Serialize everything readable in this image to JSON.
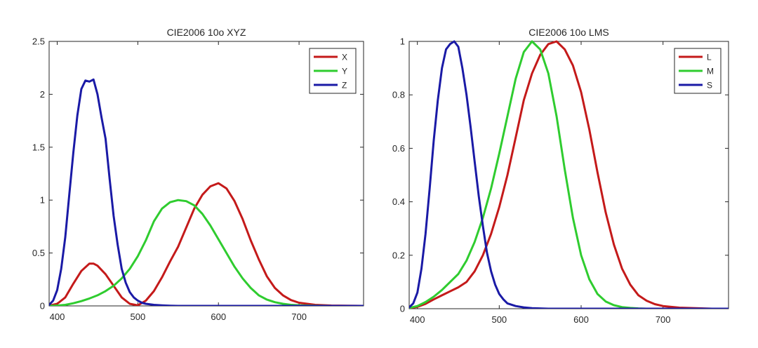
{
  "chart_data": [
    {
      "type": "line",
      "title": "CIE2006 10o XYZ",
      "xlabel": "",
      "ylabel": "",
      "xlim": [
        390,
        780
      ],
      "ylim": [
        0,
        2.5
      ],
      "xticks": [
        "400",
        "500",
        "600",
        "700"
      ],
      "xtick_values": [
        400,
        500,
        600,
        700
      ],
      "yticks": [
        "0",
        "0.5",
        "1",
        "1.5",
        "2",
        "2.5"
      ],
      "ytick_values": [
        0,
        0.5,
        1,
        1.5,
        2,
        2.5
      ],
      "grid": false,
      "legend_position": "top-right",
      "series": [
        {
          "name": "X",
          "color": "#c41a1a",
          "x": [
            390,
            400,
            410,
            420,
            430,
            440,
            445,
            450,
            460,
            470,
            480,
            490,
            500,
            510,
            520,
            530,
            540,
            550,
            560,
            570,
            580,
            590,
            600,
            610,
            620,
            630,
            640,
            650,
            660,
            670,
            680,
            690,
            700,
            720,
            740,
            760,
            780
          ],
          "y": [
            0.002,
            0.02,
            0.08,
            0.21,
            0.33,
            0.4,
            0.4,
            0.38,
            0.3,
            0.19,
            0.08,
            0.02,
            0.005,
            0.05,
            0.14,
            0.27,
            0.42,
            0.56,
            0.74,
            0.92,
            1.05,
            1.13,
            1.16,
            1.11,
            0.99,
            0.82,
            0.62,
            0.44,
            0.28,
            0.17,
            0.1,
            0.055,
            0.03,
            0.01,
            0.003,
            0.001,
            0.0
          ]
        },
        {
          "name": "Y",
          "color": "#2fcc2f",
          "x": [
            390,
            400,
            410,
            420,
            430,
            440,
            450,
            460,
            470,
            480,
            490,
            500,
            510,
            520,
            530,
            540,
            550,
            560,
            570,
            580,
            590,
            600,
            610,
            620,
            630,
            640,
            650,
            660,
            670,
            680,
            690,
            700,
            720,
            740,
            760,
            780
          ],
          "y": [
            0.0,
            0.003,
            0.01,
            0.025,
            0.045,
            0.07,
            0.1,
            0.14,
            0.19,
            0.26,
            0.35,
            0.47,
            0.62,
            0.8,
            0.92,
            0.98,
            1.0,
            0.99,
            0.95,
            0.87,
            0.76,
            0.63,
            0.5,
            0.37,
            0.26,
            0.17,
            0.1,
            0.06,
            0.035,
            0.02,
            0.01,
            0.006,
            0.002,
            0.0,
            0.0,
            0.0
          ]
        },
        {
          "name": "Z",
          "color": "#1a1aa6",
          "x": [
            390,
            395,
            400,
            405,
            410,
            415,
            420,
            425,
            430,
            435,
            440,
            445,
            450,
            455,
            460,
            465,
            470,
            475,
            480,
            485,
            490,
            495,
            500,
            505,
            510,
            520,
            530,
            540,
            550,
            560,
            580,
            600,
            650,
            700,
            780
          ],
          "y": [
            0.01,
            0.05,
            0.15,
            0.35,
            0.65,
            1.05,
            1.45,
            1.8,
            2.05,
            2.13,
            2.12,
            2.14,
            2.0,
            1.78,
            1.58,
            1.2,
            0.85,
            0.58,
            0.35,
            0.22,
            0.13,
            0.08,
            0.05,
            0.03,
            0.02,
            0.01,
            0.005,
            0.002,
            0.0,
            0.0,
            0.0,
            0.0,
            0.0,
            0.0,
            0.0
          ]
        }
      ]
    },
    {
      "type": "line",
      "title": "CIE2006 10o LMS",
      "xlabel": "",
      "ylabel": "",
      "xlim": [
        390,
        780
      ],
      "ylim": [
        0,
        1
      ],
      "xticks": [
        "400",
        "500",
        "600",
        "700"
      ],
      "xtick_values": [
        400,
        500,
        600,
        700
      ],
      "yticks": [
        "0",
        "0.2",
        "0.4",
        "0.6",
        "0.8",
        "1"
      ],
      "ytick_values": [
        0,
        0.2,
        0.4,
        0.6,
        0.8,
        1
      ],
      "grid": false,
      "legend_position": "top-right",
      "series": [
        {
          "name": "L",
          "color": "#c41a1a",
          "x": [
            390,
            400,
            410,
            420,
            430,
            440,
            450,
            460,
            470,
            480,
            490,
            500,
            510,
            520,
            530,
            540,
            550,
            560,
            570,
            580,
            590,
            600,
            610,
            620,
            630,
            640,
            650,
            660,
            670,
            680,
            690,
            700,
            720,
            740,
            760,
            780
          ],
          "y": [
            0.002,
            0.007,
            0.018,
            0.035,
            0.05,
            0.065,
            0.08,
            0.1,
            0.14,
            0.2,
            0.28,
            0.38,
            0.5,
            0.64,
            0.78,
            0.88,
            0.95,
            0.99,
            1.0,
            0.97,
            0.91,
            0.81,
            0.67,
            0.51,
            0.36,
            0.24,
            0.15,
            0.09,
            0.05,
            0.03,
            0.017,
            0.01,
            0.004,
            0.002,
            0.0,
            0.0
          ]
        },
        {
          "name": "M",
          "color": "#2fcc2f",
          "x": [
            390,
            400,
            410,
            420,
            430,
            440,
            450,
            460,
            470,
            480,
            490,
            500,
            510,
            520,
            530,
            540,
            550,
            560,
            570,
            580,
            590,
            600,
            610,
            620,
            630,
            640,
            650,
            660,
            670,
            680,
            700,
            720,
            740,
            780
          ],
          "y": [
            0.003,
            0.01,
            0.025,
            0.045,
            0.07,
            0.1,
            0.13,
            0.18,
            0.25,
            0.34,
            0.45,
            0.58,
            0.72,
            0.86,
            0.96,
            1.0,
            0.97,
            0.88,
            0.72,
            0.52,
            0.34,
            0.2,
            0.11,
            0.055,
            0.027,
            0.013,
            0.006,
            0.003,
            0.001,
            0.0,
            0.0,
            0.0,
            0.0,
            0.0
          ]
        },
        {
          "name": "S",
          "color": "#1a1aa6",
          "x": [
            390,
            395,
            400,
            405,
            410,
            415,
            420,
            425,
            430,
            435,
            440,
            445,
            450,
            455,
            460,
            465,
            470,
            475,
            480,
            485,
            490,
            495,
            500,
            505,
            510,
            520,
            530,
            540,
            550,
            560,
            600,
            650,
            700,
            780
          ],
          "y": [
            0.005,
            0.02,
            0.06,
            0.15,
            0.28,
            0.45,
            0.63,
            0.78,
            0.9,
            0.97,
            0.99,
            1.0,
            0.98,
            0.9,
            0.8,
            0.68,
            0.55,
            0.42,
            0.31,
            0.21,
            0.14,
            0.09,
            0.055,
            0.035,
            0.02,
            0.01,
            0.005,
            0.002,
            0.001,
            0.0,
            0.0,
            0.0,
            0.0,
            0.0
          ]
        }
      ]
    }
  ]
}
